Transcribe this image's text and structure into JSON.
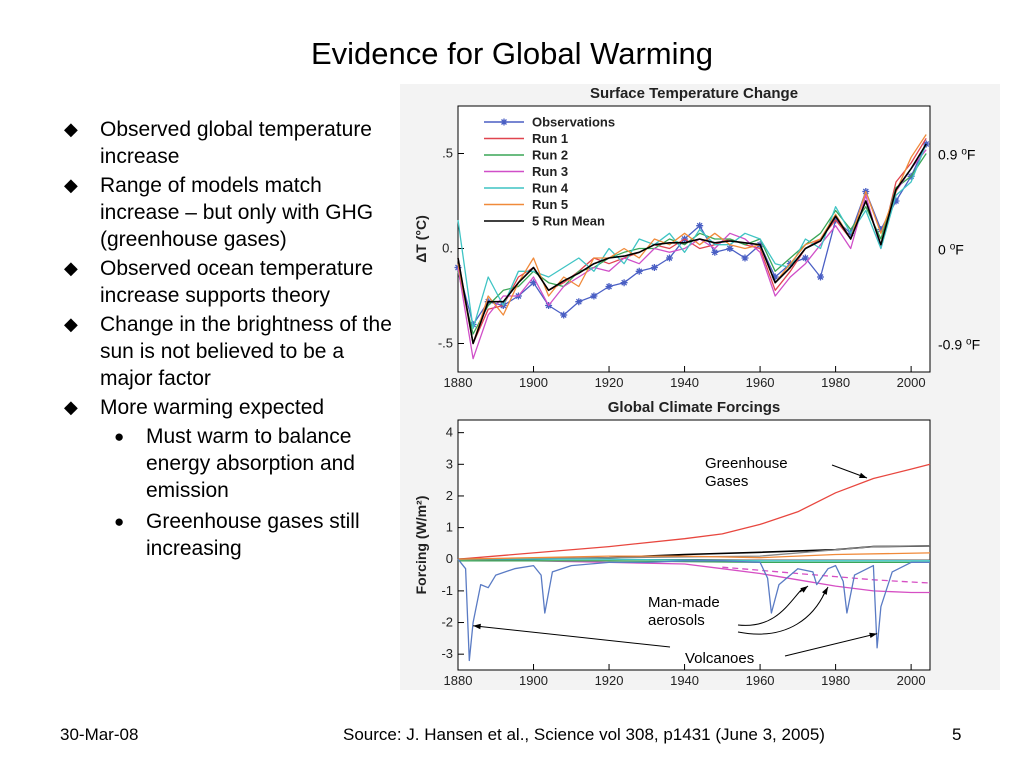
{
  "slide": {
    "title": "Evidence for Global Warming",
    "bullet_icon": "diamond-bullet-icon",
    "sub_bullet_icon": "circle-bullet-icon",
    "bullets": [
      {
        "text": "Observed global temperature increase"
      },
      {
        "text": "Range of models match increase – but only with GHG (greenhouse gases)"
      },
      {
        "text": "Observed ocean temperature increase supports theory"
      },
      {
        "text": "Change in the brightness of the sun is not believed to be a major factor"
      },
      {
        "text": "More warming expected",
        "sub": [
          {
            "text": "Must warm to balance energy absorption and emission"
          },
          {
            "text": "Greenhouse gases still increasing"
          }
        ]
      }
    ],
    "footer": {
      "date": "30-Mar-08",
      "source": "Source: J. Hansen et al., Science vol 308, p1431 (June 3, 2005)",
      "page": "5"
    }
  },
  "chart_data": [
    {
      "type": "line",
      "title": "Surface Temperature Change",
      "ylabel": "ΔT (°C)",
      "xlim": [
        1880,
        2005
      ],
      "ylim": [
        -0.65,
        0.75
      ],
      "x_ticks": [
        1880,
        1900,
        1920,
        1940,
        1960,
        1980,
        2000
      ],
      "y_ticks": [
        {
          "v": 0.5,
          "label": ".5"
        },
        {
          "v": 0,
          "label": "0."
        },
        {
          "v": -0.5,
          "label": "-.5"
        }
      ],
      "right_annotations": [
        {
          "v": 0.5,
          "base": "0.9 ",
          "sup": "o",
          "unit": "F"
        },
        {
          "v": 0,
          "base": "0 ",
          "sup": "o",
          "unit": "F"
        },
        {
          "v": -0.5,
          "base": "-0.9 ",
          "sup": "o",
          "unit": "F"
        }
      ],
      "legend_placement": "top-left",
      "series": [
        {
          "name": "Observations",
          "color": "#4a5fc4",
          "marker": "star",
          "x": [
            1880,
            1884,
            1888,
            1892,
            1896,
            1900,
            1904,
            1908,
            1912,
            1916,
            1920,
            1924,
            1928,
            1932,
            1936,
            1940,
            1944,
            1948,
            1952,
            1956,
            1960,
            1964,
            1968,
            1972,
            1976,
            1980,
            1984,
            1988,
            1992,
            1996,
            2000,
            2004
          ],
          "y": [
            -0.1,
            -0.4,
            -0.28,
            -0.3,
            -0.25,
            -0.18,
            -0.3,
            -0.35,
            -0.28,
            -0.25,
            -0.2,
            -0.18,
            -0.12,
            -0.1,
            -0.05,
            0.05,
            0.12,
            -0.02,
            0.0,
            -0.05,
            0.02,
            -0.15,
            -0.08,
            -0.05,
            -0.15,
            0.15,
            0.08,
            0.3,
            0.1,
            0.25,
            0.38,
            0.55
          ]
        },
        {
          "name": "Run 1",
          "color": "#e0444f",
          "x": [
            1880,
            1884,
            1888,
            1892,
            1896,
            1900,
            1904,
            1908,
            1912,
            1916,
            1920,
            1924,
            1928,
            1932,
            1936,
            1940,
            1944,
            1948,
            1952,
            1956,
            1960,
            1964,
            1968,
            1972,
            1976,
            1980,
            1984,
            1988,
            1992,
            1996,
            2000,
            2004
          ],
          "y": [
            -0.05,
            -0.5,
            -0.32,
            -0.3,
            -0.15,
            -0.1,
            -0.22,
            -0.18,
            -0.12,
            -0.05,
            -0.08,
            -0.05,
            -0.02,
            0.02,
            0.0,
            0.05,
            0.0,
            0.02,
            0.05,
            0.02,
            0.0,
            -0.22,
            -0.12,
            0.0,
            0.05,
            0.15,
            0.05,
            0.25,
            0.02,
            0.35,
            0.45,
            0.58
          ]
        },
        {
          "name": "Run 2",
          "color": "#3aa657",
          "x": [
            1880,
            1884,
            1888,
            1892,
            1896,
            1900,
            1904,
            1908,
            1912,
            1916,
            1920,
            1924,
            1928,
            1932,
            1936,
            1940,
            1944,
            1948,
            1952,
            1956,
            1960,
            1964,
            1968,
            1972,
            1976,
            1980,
            1984,
            1988,
            1992,
            1996,
            2000,
            2004
          ],
          "y": [
            -0.12,
            -0.45,
            -0.3,
            -0.22,
            -0.2,
            -0.12,
            -0.18,
            -0.2,
            -0.12,
            -0.1,
            -0.05,
            -0.02,
            0.0,
            0.0,
            0.05,
            0.02,
            0.08,
            0.05,
            0.05,
            0.02,
            0.05,
            -0.12,
            -0.05,
            0.02,
            0.08,
            0.2,
            0.1,
            0.22,
            0.05,
            0.32,
            0.38,
            0.5
          ]
        },
        {
          "name": "Run 3",
          "color": "#d04fc8",
          "x": [
            1880,
            1884,
            1888,
            1892,
            1896,
            1900,
            1904,
            1908,
            1912,
            1916,
            1920,
            1924,
            1928,
            1932,
            1936,
            1940,
            1944,
            1948,
            1952,
            1956,
            1960,
            1964,
            1968,
            1972,
            1976,
            1980,
            1984,
            1988,
            1992,
            1996,
            2000,
            2004
          ],
          "y": [
            -0.1,
            -0.58,
            -0.35,
            -0.25,
            -0.25,
            -0.15,
            -0.3,
            -0.2,
            -0.15,
            -0.1,
            -0.12,
            -0.05,
            -0.08,
            0.0,
            -0.02,
            0.0,
            0.05,
            0.0,
            0.08,
            0.05,
            -0.02,
            -0.25,
            -0.15,
            -0.08,
            0.02,
            0.12,
            0.0,
            0.28,
            0.0,
            0.3,
            0.42,
            0.52
          ]
        },
        {
          "name": "Run 4",
          "color": "#3fc4c4",
          "x": [
            1880,
            1884,
            1888,
            1892,
            1896,
            1900,
            1904,
            1908,
            1912,
            1916,
            1920,
            1924,
            1928,
            1932,
            1936,
            1940,
            1944,
            1948,
            1952,
            1956,
            1960,
            1964,
            1968,
            1972,
            1976,
            1980,
            1984,
            1988,
            1992,
            1996,
            2000,
            2004
          ],
          "y": [
            0.15,
            -0.42,
            -0.15,
            -0.3,
            -0.12,
            -0.12,
            -0.15,
            -0.1,
            -0.05,
            -0.12,
            0.0,
            -0.08,
            0.05,
            0.02,
            0.08,
            -0.02,
            0.1,
            0.02,
            0.02,
            0.08,
            0.05,
            -0.08,
            -0.1,
            0.05,
            0.0,
            0.22,
            0.08,
            0.2,
            0.0,
            0.28,
            0.35,
            0.55
          ]
        },
        {
          "name": "Run 5",
          "color": "#f08a3a",
          "x": [
            1880,
            1884,
            1888,
            1892,
            1896,
            1900,
            1904,
            1908,
            1912,
            1916,
            1920,
            1924,
            1928,
            1932,
            1936,
            1940,
            1944,
            1948,
            1952,
            1956,
            1960,
            1964,
            1968,
            1972,
            1976,
            1980,
            1984,
            1988,
            1992,
            1996,
            2000,
            2004
          ],
          "y": [
            -0.08,
            -0.5,
            -0.25,
            -0.35,
            -0.18,
            -0.05,
            -0.25,
            -0.15,
            -0.2,
            -0.05,
            -0.05,
            0.0,
            -0.05,
            0.05,
            0.02,
            0.08,
            0.02,
            0.08,
            0.02,
            0.0,
            0.02,
            -0.18,
            -0.08,
            0.02,
            0.05,
            0.18,
            0.05,
            0.3,
            0.08,
            0.3,
            0.48,
            0.6
          ]
        },
        {
          "name": "5 Run Mean",
          "color": "#000000",
          "x": [
            1880,
            1884,
            1888,
            1892,
            1896,
            1900,
            1904,
            1908,
            1912,
            1916,
            1920,
            1924,
            1928,
            1932,
            1936,
            1940,
            1944,
            1948,
            1952,
            1956,
            1960,
            1964,
            1968,
            1972,
            1976,
            1980,
            1984,
            1988,
            1992,
            1996,
            2000,
            2004
          ],
          "y": [
            -0.05,
            -0.5,
            -0.28,
            -0.28,
            -0.18,
            -0.1,
            -0.22,
            -0.17,
            -0.13,
            -0.08,
            -0.05,
            -0.04,
            -0.02,
            0.02,
            0.03,
            0.03,
            0.05,
            0.03,
            0.04,
            0.03,
            0.02,
            -0.18,
            -0.1,
            0.0,
            0.04,
            0.17,
            0.05,
            0.25,
            0.02,
            0.31,
            0.42,
            0.55
          ]
        }
      ]
    },
    {
      "type": "line",
      "title": "Global Climate Forcings",
      "ylabel": "Forcing (W/m²)",
      "xlim": [
        1880,
        2005
      ],
      "ylim": [
        -3.5,
        4.4
      ],
      "x_ticks": [
        1880,
        1900,
        1920,
        1940,
        1960,
        1980,
        2000
      ],
      "y_ticks": [
        4,
        3,
        2,
        1,
        0,
        -1,
        -2,
        -3
      ],
      "annotations": [
        "Greenhouse Gases",
        "Man-made aerosols",
        "Volcanoes"
      ],
      "series": [
        {
          "name": "Greenhouse Gases",
          "color": "#e8473f",
          "x": [
            1880,
            1900,
            1920,
            1940,
            1950,
            1960,
            1970,
            1980,
            1990,
            2000,
            2005
          ],
          "y": [
            0.0,
            0.2,
            0.4,
            0.65,
            0.8,
            1.1,
            1.5,
            2.1,
            2.55,
            2.85,
            3.0
          ]
        },
        {
          "name": "Man-made aerosols",
          "color": "#d64fc4",
          "x": [
            1880,
            1900,
            1920,
            1940,
            1950,
            1960,
            1970,
            1980,
            1990,
            2000,
            2005
          ],
          "y": [
            0.0,
            -0.05,
            -0.1,
            -0.15,
            -0.3,
            -0.45,
            -0.65,
            -0.85,
            -1.0,
            -1.05,
            -1.05
          ]
        },
        {
          "name": "",
          "color": "#d64fc4",
          "dashed": true,
          "x": [
            1950,
            1960,
            1970,
            1980,
            1990,
            2000,
            2005
          ],
          "y": [
            -0.25,
            -0.35,
            -0.45,
            -0.55,
            -0.65,
            -0.72,
            -0.75
          ]
        },
        {
          "name": "",
          "color": "#000000",
          "x": [
            1880,
            1900,
            1920,
            1940,
            1960,
            1980,
            1990,
            2005
          ],
          "y": [
            0.0,
            0.0,
            0.05,
            0.15,
            0.22,
            0.3,
            0.4,
            0.42
          ]
        },
        {
          "name": "",
          "color": "#888888",
          "x": [
            1880,
            1920,
            1960,
            1990,
            2005
          ],
          "y": [
            0.0,
            0.05,
            0.1,
            0.4,
            0.42
          ]
        },
        {
          "name": "",
          "color": "#3fc4c4",
          "x": [
            1880,
            1920,
            1960,
            2005
          ],
          "y": [
            0.0,
            0.0,
            -0.05,
            -0.05
          ]
        },
        {
          "name": "",
          "color": "#3aa657",
          "x": [
            1880,
            1920,
            1960,
            2005
          ],
          "y": [
            -0.05,
            -0.05,
            -0.1,
            -0.1
          ]
        },
        {
          "name": "",
          "color": "#f08a3a",
          "x": [
            1880,
            1900,
            1920,
            1940,
            1960,
            1980,
            2005
          ],
          "y": [
            0.0,
            0.05,
            0.1,
            0.1,
            0.05,
            0.15,
            0.2
          ]
        },
        {
          "name": "Volcanoes",
          "color": "#5a7bc4",
          "x": [
            1880,
            1882,
            1883,
            1884,
            1886,
            1888,
            1890,
            1895,
            1900,
            1902,
            1903,
            1905,
            1910,
            1920,
            1930,
            1940,
            1950,
            1960,
            1962,
            1963,
            1965,
            1970,
            1974,
            1975,
            1978,
            1980,
            1982,
            1983,
            1985,
            1990,
            1991,
            1992,
            1995,
            2000,
            2005
          ],
          "y": [
            0,
            -0.3,
            -3.2,
            -2.0,
            -0.8,
            -0.9,
            -0.5,
            -0.3,
            -0.2,
            -0.5,
            -1.7,
            -0.4,
            -0.2,
            -0.1,
            -0.1,
            -0.05,
            -0.05,
            -0.1,
            -0.6,
            -1.7,
            -0.8,
            -0.3,
            -0.4,
            -0.8,
            -0.3,
            -0.2,
            -0.7,
            -1.7,
            -0.5,
            -0.2,
            -2.8,
            -1.5,
            -0.4,
            -0.1,
            -0.1
          ]
        }
      ]
    }
  ]
}
